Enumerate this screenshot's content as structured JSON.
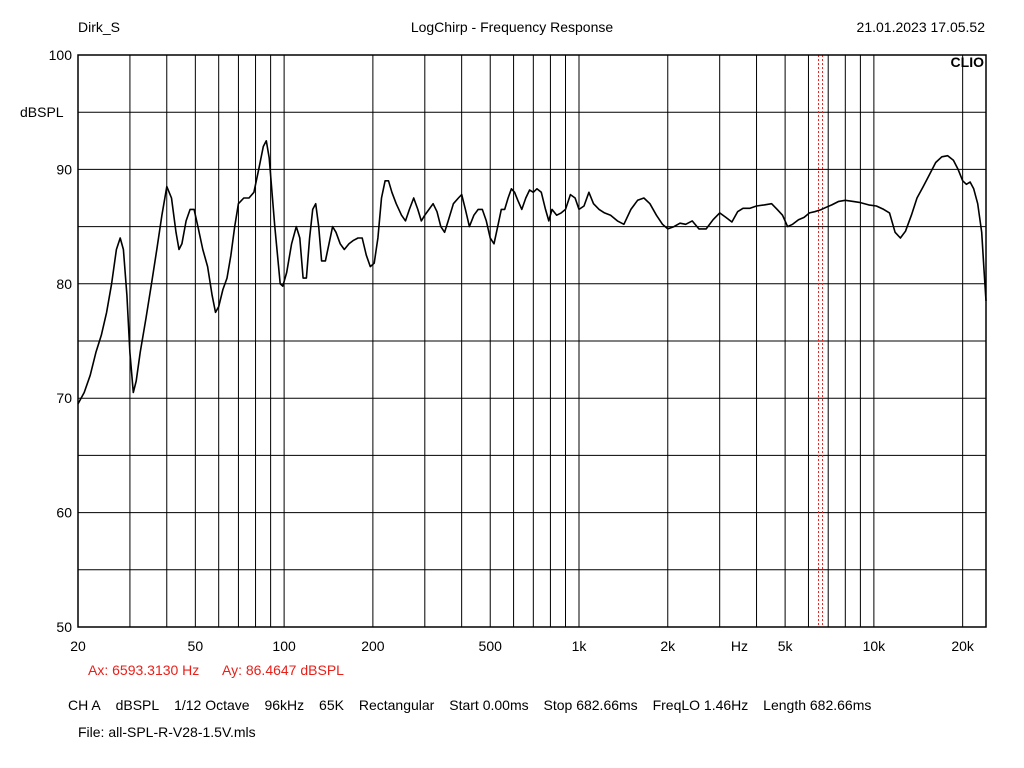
{
  "header": {
    "user": "Dirk_S",
    "title": "LogChirp - Frequency Response",
    "datetime": "21.01.2023 17.05.52"
  },
  "logo": "CLIO",
  "cursor": {
    "ax": "Ax: 6593.3130 Hz",
    "ay": "Ay: 86.4647 dBSPL",
    "freq_hz": 6593.313,
    "color": "#e8201a"
  },
  "info": {
    "channel": "CH A",
    "unit": "dBSPL",
    "smoothing": "1/12 Octave",
    "rate": "96kHz",
    "size": "65K",
    "window": "Rectangular",
    "start": "Start 0.00ms",
    "stop": "Stop 682.66ms",
    "freqlo": "FreqLO 1.46Hz",
    "length": "Length 682.66ms"
  },
  "file": "File: all-SPL-R-V28-1.5V.mls",
  "chart_data": {
    "type": "line",
    "xscale": "log",
    "xlim": [
      20,
      24000
    ],
    "ylim": [
      50,
      100
    ],
    "xlabel": "Hz",
    "ylabel": "dBSPL",
    "grid": true,
    "y_ticks": [
      50,
      60,
      70,
      80,
      90,
      100
    ],
    "x_ticks": [
      {
        "value": 20,
        "label": "20"
      },
      {
        "value": 50,
        "label": "50"
      },
      {
        "value": 100,
        "label": "100"
      },
      {
        "value": 200,
        "label": "200"
      },
      {
        "value": 500,
        "label": "500"
      },
      {
        "value": 1000,
        "label": "1k"
      },
      {
        "value": 2000,
        "label": "2k"
      },
      {
        "value": 5000,
        "label": "5k"
      },
      {
        "value": 10000,
        "label": "10k"
      },
      {
        "value": 20000,
        "label": "20k"
      }
    ],
    "x_unit_at": 3500,
    "series": [
      {
        "color": "#000000",
        "points": [
          [
            20,
            69.5
          ],
          [
            21,
            70.5
          ],
          [
            22,
            72
          ],
          [
            23,
            74
          ],
          [
            24,
            75.5
          ],
          [
            25,
            77.5
          ],
          [
            26,
            80
          ],
          [
            27,
            83
          ],
          [
            27.8,
            84
          ],
          [
            28.5,
            83
          ],
          [
            29.3,
            79
          ],
          [
            30,
            74
          ],
          [
            30.8,
            70.5
          ],
          [
            31.5,
            71.5
          ],
          [
            32.5,
            74
          ],
          [
            34,
            77
          ],
          [
            35.5,
            80
          ],
          [
            37,
            83
          ],
          [
            38.5,
            86
          ],
          [
            40,
            88.5
          ],
          [
            41.5,
            87.5
          ],
          [
            43,
            84.5
          ],
          [
            44,
            83
          ],
          [
            45,
            83.5
          ],
          [
            46.5,
            85.5
          ],
          [
            48,
            86.5
          ],
          [
            49.5,
            86.5
          ],
          [
            51,
            85
          ],
          [
            53,
            83
          ],
          [
            55,
            81.5
          ],
          [
            57,
            79
          ],
          [
            58.5,
            77.5
          ],
          [
            60,
            78
          ],
          [
            62,
            79.5
          ],
          [
            64,
            80.5
          ],
          [
            66,
            82.5
          ],
          [
            68,
            85
          ],
          [
            70,
            87
          ],
          [
            73,
            87.5
          ],
          [
            76,
            87.5
          ],
          [
            79,
            88
          ],
          [
            82,
            90
          ],
          [
            85,
            92
          ],
          [
            87,
            92.5
          ],
          [
            89,
            91
          ],
          [
            91,
            88
          ],
          [
            93,
            85
          ],
          [
            95,
            82.5
          ],
          [
            97,
            80
          ],
          [
            99,
            79.8
          ],
          [
            102,
            81
          ],
          [
            106,
            83.5
          ],
          [
            110,
            85
          ],
          [
            113,
            84
          ],
          [
            116,
            80.5
          ],
          [
            119,
            80.5
          ],
          [
            122,
            84
          ],
          [
            125,
            86.5
          ],
          [
            128,
            87
          ],
          [
            131,
            85
          ],
          [
            134,
            82
          ],
          [
            138,
            82
          ],
          [
            142,
            83.5
          ],
          [
            146,
            85
          ],
          [
            150,
            84.5
          ],
          [
            155,
            83.5
          ],
          [
            160,
            83
          ],
          [
            166,
            83.5
          ],
          [
            172,
            83.8
          ],
          [
            178,
            84
          ],
          [
            184,
            84
          ],
          [
            190,
            82.5
          ],
          [
            196,
            81.5
          ],
          [
            202,
            81.8
          ],
          [
            208,
            84
          ],
          [
            214,
            87.5
          ],
          [
            220,
            89
          ],
          [
            226,
            89
          ],
          [
            232,
            88
          ],
          [
            240,
            87
          ],
          [
            250,
            86
          ],
          [
            258,
            85.5
          ],
          [
            266,
            86.5
          ],
          [
            275,
            87.5
          ],
          [
            284,
            86.5
          ],
          [
            292,
            85.5
          ],
          [
            300,
            86
          ],
          [
            310,
            86.5
          ],
          [
            320,
            87
          ],
          [
            330,
            86.3
          ],
          [
            340,
            85
          ],
          [
            350,
            84.5
          ],
          [
            360,
            85.5
          ],
          [
            375,
            87
          ],
          [
            390,
            87.5
          ],
          [
            400,
            87.8
          ],
          [
            412,
            86.5
          ],
          [
            425,
            85
          ],
          [
            440,
            86
          ],
          [
            455,
            86.5
          ],
          [
            470,
            86.5
          ],
          [
            485,
            85.5
          ],
          [
            500,
            84
          ],
          [
            515,
            83.5
          ],
          [
            530,
            85
          ],
          [
            545,
            86.5
          ],
          [
            560,
            86.5
          ],
          [
            575,
            87.5
          ],
          [
            590,
            88.3
          ],
          [
            605,
            88
          ],
          [
            620,
            87.3
          ],
          [
            640,
            86.5
          ],
          [
            660,
            87.5
          ],
          [
            680,
            88.2
          ],
          [
            700,
            88
          ],
          [
            720,
            88.3
          ],
          [
            745,
            88
          ],
          [
            770,
            86.5
          ],
          [
            790,
            85.5
          ],
          [
            810,
            86.5
          ],
          [
            840,
            86
          ],
          [
            870,
            86.2
          ],
          [
            900,
            86.5
          ],
          [
            935,
            87.8
          ],
          [
            970,
            87.5
          ],
          [
            1000,
            86.5
          ],
          [
            1040,
            86.8
          ],
          [
            1080,
            88
          ],
          [
            1120,
            87
          ],
          [
            1170,
            86.5
          ],
          [
            1220,
            86.2
          ],
          [
            1280,
            86
          ],
          [
            1350,
            85.5
          ],
          [
            1420,
            85.2
          ],
          [
            1500,
            86.5
          ],
          [
            1580,
            87.3
          ],
          [
            1660,
            87.5
          ],
          [
            1740,
            87
          ],
          [
            1830,
            86
          ],
          [
            1920,
            85.2
          ],
          [
            2000,
            84.8
          ],
          [
            2100,
            85
          ],
          [
            2200,
            85.3
          ],
          [
            2300,
            85.2
          ],
          [
            2420,
            85.5
          ],
          [
            2550,
            84.8
          ],
          [
            2700,
            84.8
          ],
          [
            2850,
            85.6
          ],
          [
            3000,
            86.2
          ],
          [
            3150,
            85.8
          ],
          [
            3300,
            85.4
          ],
          [
            3450,
            86.3
          ],
          [
            3600,
            86.6
          ],
          [
            3800,
            86.6
          ],
          [
            4000,
            86.8
          ],
          [
            4250,
            86.9
          ],
          [
            4500,
            87
          ],
          [
            4700,
            86.5
          ],
          [
            4900,
            86
          ],
          [
            5100,
            85
          ],
          [
            5300,
            85.2
          ],
          [
            5550,
            85.6
          ],
          [
            5800,
            85.8
          ],
          [
            6050,
            86.2
          ],
          [
            6300,
            86.3
          ],
          [
            6593,
            86.46
          ],
          [
            6900,
            86.7
          ],
          [
            7200,
            86.9
          ],
          [
            7600,
            87.2
          ],
          [
            8000,
            87.3
          ],
          [
            8500,
            87.2
          ],
          [
            9000,
            87.1
          ],
          [
            9600,
            86.9
          ],
          [
            10200,
            86.8
          ],
          [
            10800,
            86.5
          ],
          [
            11300,
            86.2
          ],
          [
            11800,
            84.5
          ],
          [
            12300,
            84
          ],
          [
            12800,
            84.6
          ],
          [
            13400,
            86
          ],
          [
            14000,
            87.5
          ],
          [
            14700,
            88.5
          ],
          [
            15400,
            89.5
          ],
          [
            16200,
            90.6
          ],
          [
            17000,
            91.1
          ],
          [
            17800,
            91.2
          ],
          [
            18600,
            90.8
          ],
          [
            19300,
            90
          ],
          [
            20000,
            89
          ],
          [
            20600,
            88.7
          ],
          [
            21200,
            88.9
          ],
          [
            21800,
            88.3
          ],
          [
            22500,
            87
          ],
          [
            23200,
            84.5
          ],
          [
            23600,
            81.5
          ],
          [
            24000,
            78.5
          ]
        ]
      }
    ]
  }
}
